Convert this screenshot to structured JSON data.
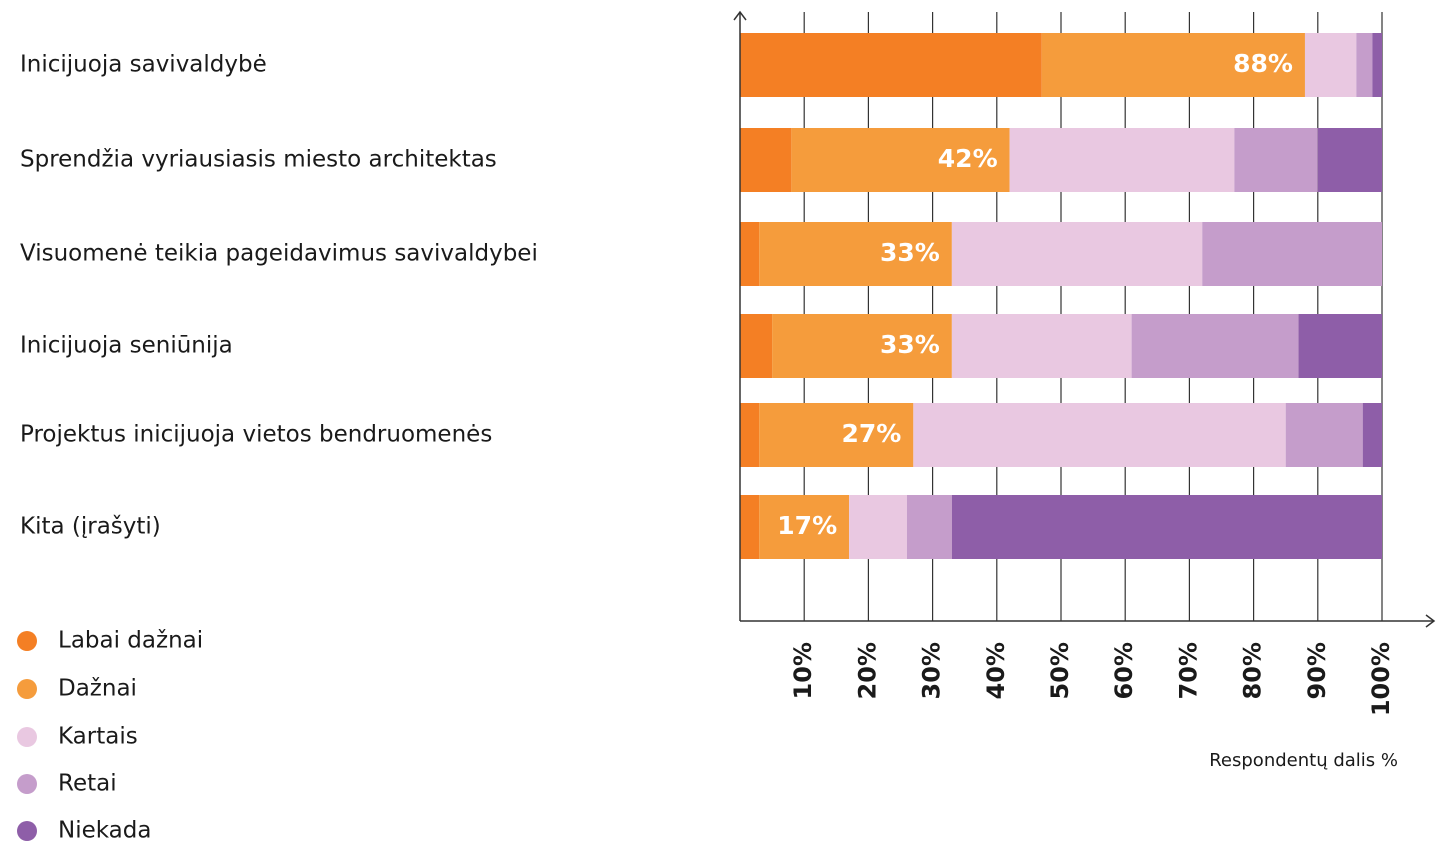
{
  "chart_data": {
    "type": "stacked-barh",
    "categories": [
      "Inicijuoja savivaldybė",
      "Sprendžia vyriausiasis miesto architektas",
      "Visuomenė teikia pageidavimus savivaldybei",
      "Inicijuoja seniūnija",
      "Projektus inicijuoja vietos bendruomenės",
      "Kita (įrašyti)"
    ],
    "series": [
      {
        "name": "Labai dažnai",
        "color": "#f47f24",
        "values": [
          47,
          8,
          3,
          5,
          3,
          3
        ]
      },
      {
        "name": "Dažnai",
        "color": "#f59c3c",
        "values": [
          41,
          34,
          30,
          28,
          24,
          14
        ]
      },
      {
        "name": "Kartais",
        "color": "#e9c8e1",
        "values": [
          8,
          35,
          39,
          28,
          58,
          9
        ]
      },
      {
        "name": "Retai",
        "color": "#c59dcb",
        "values": [
          2.5,
          13,
          28,
          26,
          12,
          7
        ]
      },
      {
        "name": "Niekada",
        "color": "#8e5ea8",
        "values": [
          1.5,
          10,
          0,
          13,
          3,
          67
        ]
      }
    ],
    "bar_labels": [
      "88%",
      "42%",
      "33%",
      "33%",
      "27%",
      "17%"
    ],
    "xlim": [
      0,
      100
    ],
    "xticks": [
      {
        "value": 10,
        "label": "10%"
      },
      {
        "value": 20,
        "label": "20%"
      },
      {
        "value": 30,
        "label": "30%"
      },
      {
        "value": 40,
        "label": "40%"
      },
      {
        "value": 50,
        "label": "50%"
      },
      {
        "value": 60,
        "label": "60%"
      },
      {
        "value": 70,
        "label": "70%"
      },
      {
        "value": 80,
        "label": "80%"
      },
      {
        "value": 90,
        "label": "90%"
      },
      {
        "value": 100,
        "label": "100%"
      }
    ],
    "xlabel": "Respondentų dalis %",
    "grid": true
  }
}
